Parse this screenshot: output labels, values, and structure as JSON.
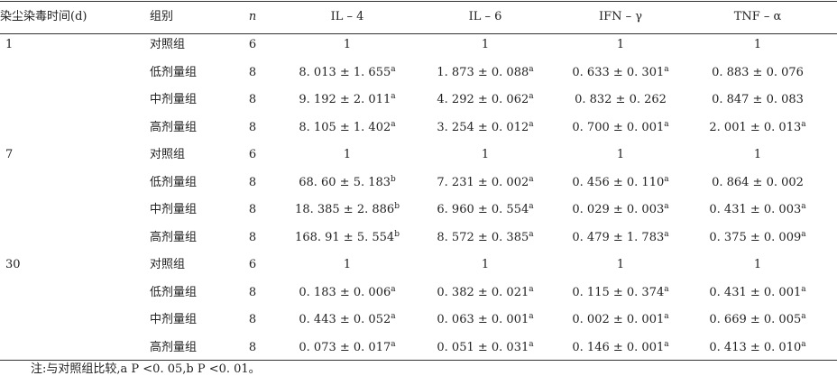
{
  "table": {
    "header": [
      "染尘染毒时间(d)",
      "组别",
      "n",
      "IL – 4",
      "IL – 6",
      "IFN – γ",
      "TNF – α"
    ],
    "groups": [
      {
        "time": "1",
        "rows": [
          [
            "对照组",
            "6",
            "1",
            "1",
            "1",
            "1"
          ],
          [
            "低剂量组",
            "8",
            {
              "text": "8. 013 ± 1. 655",
              "sup": "a"
            },
            {
              "text": "1. 873 ± 0. 088",
              "sup": "a"
            },
            {
              "text": "0. 633 ± 0. 301",
              "sup": "a"
            },
            "0. 883 ± 0. 076"
          ],
          [
            "中剂量组",
            "8",
            {
              "text": "9. 192 ± 2. 011",
              "sup": "a"
            },
            {
              "text": "4. 292 ± 0. 062",
              "sup": "a"
            },
            "0. 832 ± 0. 262",
            "0. 847 ± 0. 083"
          ],
          [
            "高剂量组",
            "8",
            {
              "text": "8. 105 ± 1. 402",
              "sup": "a"
            },
            {
              "text": "3. 254 ± 0. 012",
              "sup": "a"
            },
            {
              "text": "0. 700 ± 0. 001",
              "sup": "a"
            },
            {
              "text": "2. 001 ± 0. 013",
              "sup": "a"
            }
          ]
        ]
      },
      {
        "time": "7",
        "rows": [
          [
            "对照组",
            "6",
            "1",
            "1",
            "1",
            "1"
          ],
          [
            "低剂量组",
            "8",
            {
              "text": "68. 60 ± 5. 183",
              "sup": "b"
            },
            {
              "text": "7. 231 ± 0. 002",
              "sup": "a"
            },
            {
              "text": "0. 456 ± 0. 110",
              "sup": "a"
            },
            "0. 864 ± 0. 002"
          ],
          [
            "中剂量组",
            "8",
            {
              "text": "18. 385 ± 2. 886",
              "sup": "b"
            },
            {
              "text": "6. 960 ± 0. 554",
              "sup": "a"
            },
            {
              "text": "0. 029 ± 0. 003",
              "sup": "a"
            },
            {
              "text": "0. 431 ± 0. 003",
              "sup": "a"
            }
          ],
          [
            "高剂量组",
            "8",
            {
              "text": "168. 91 ± 5. 554",
              "sup": "b"
            },
            {
              "text": "8. 572 ± 0. 385",
              "sup": "a"
            },
            {
              "text": "0. 479 ± 1. 783",
              "sup": "a"
            },
            {
              "text": "0. 375 ± 0. 009",
              "sup": "a"
            }
          ]
        ]
      },
      {
        "time": "30",
        "rows": [
          [
            "对照组",
            "6",
            "1",
            "1",
            "1",
            "1"
          ],
          [
            "低剂量组",
            "8",
            {
              "text": "0. 183 ± 0. 006",
              "sup": "a"
            },
            {
              "text": "0. 382 ± 0. 021",
              "sup": "a"
            },
            {
              "text": "0. 115 ± 0. 374",
              "sup": "a"
            },
            {
              "text": "0. 431 ± 0. 001",
              "sup": "a"
            }
          ],
          [
            "中剂量组",
            "8",
            {
              "text": "0. 443 ± 0. 052",
              "sup": "a"
            },
            {
              "text": "0. 063 ± 0. 001",
              "sup": "a"
            },
            {
              "text": "0. 002 ± 0. 001",
              "sup": "a"
            },
            {
              "text": "0. 669 ± 0. 005",
              "sup": "a"
            }
          ],
          [
            "高剂量组",
            "8",
            {
              "text": "0. 073 ± 0. 017",
              "sup": "a"
            },
            {
              "text": "0. 051 ± 0. 031",
              "sup": "a"
            },
            {
              "text": "0. 146 ± 0. 001",
              "sup": "a"
            },
            {
              "text": "0. 413 ± 0. 010",
              "sup": "a"
            }
          ]
        ]
      }
    ],
    "note": "注:与对照组比较,a P <0. 05,b P <0. 01。"
  }
}
